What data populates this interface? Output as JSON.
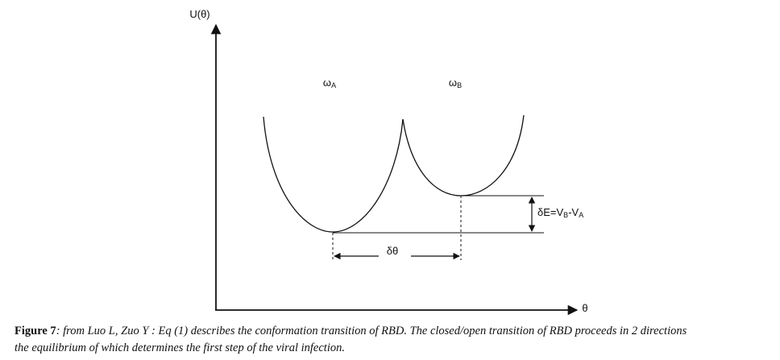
{
  "diagram": {
    "y_axis_label": "U(θ)",
    "x_axis_label": "θ",
    "well_a_label": {
      "symbol": "ω",
      "subscript": "A"
    },
    "well_b_label": {
      "symbol": "ω",
      "subscript": "B"
    },
    "angle_gap_label": "δθ",
    "energy_gap_label": {
      "parts": [
        "δE=V",
        "B",
        "-V",
        "A"
      ]
    }
  },
  "caption": {
    "lead": "Figure 7",
    "body_line_1": ": from Luo L, Zuo Y : Eq (1) describes the conformation transition of RBD. The closed/open transition of RBD proceeds in 2 directions",
    "body_line_2": "the equilibrium of which determines the first step of  the viral infection."
  }
}
